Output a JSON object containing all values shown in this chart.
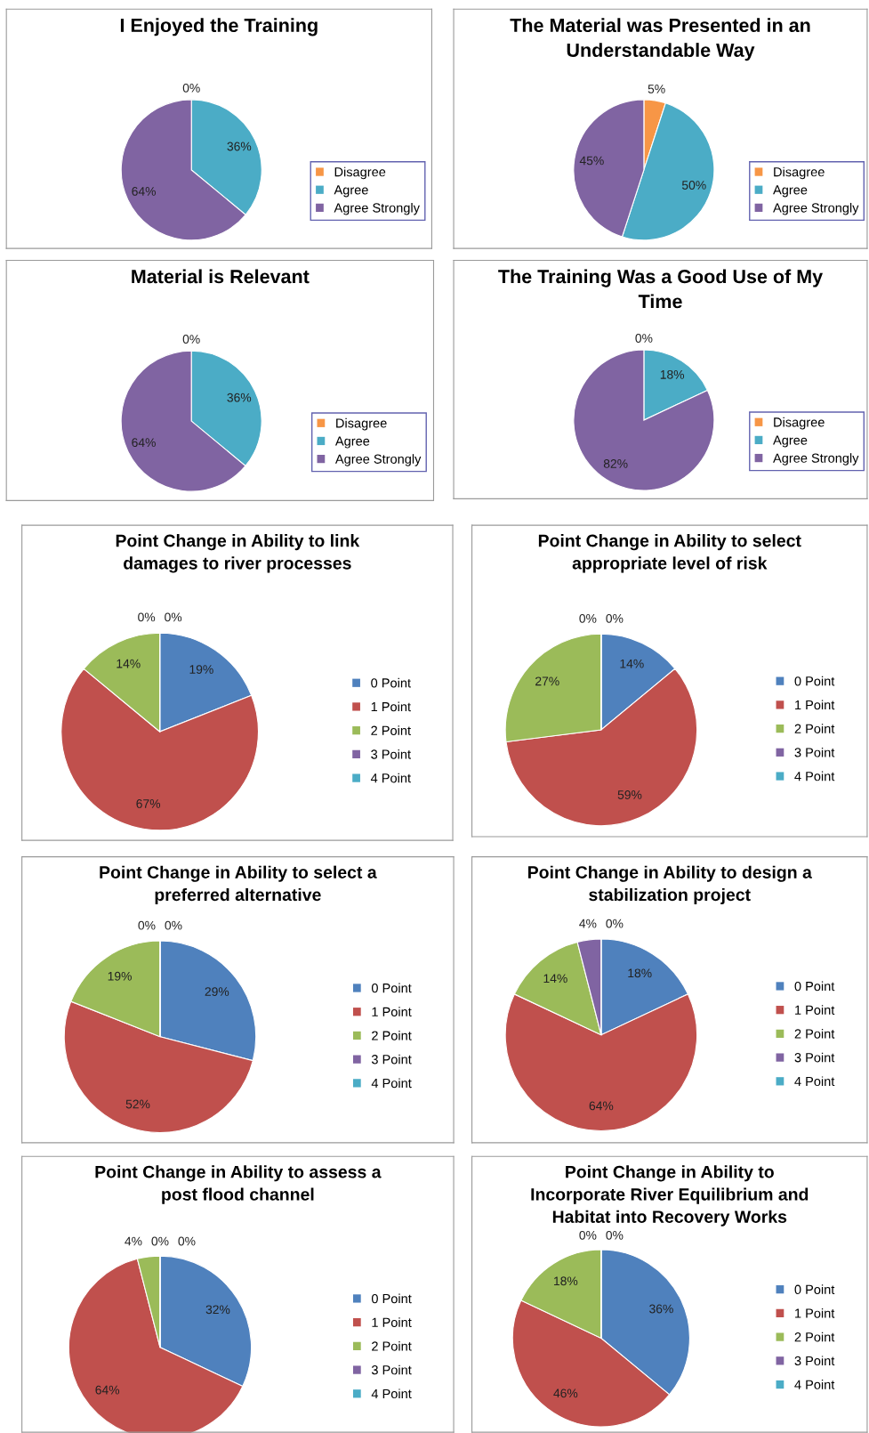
{
  "chart_data": [
    {
      "type": "pie",
      "title": "I Enjoyed the Training",
      "categories": [
        "Disagree",
        "Agree",
        "Agree Strongly"
      ],
      "values": [
        0,
        36,
        64
      ],
      "colors": [
        "#f79646",
        "#4bacc6",
        "#8064a2"
      ],
      "value_labels": [
        "0%",
        "36%",
        "64%"
      ],
      "legend": "right"
    },
    {
      "type": "pie",
      "title": "The Material was Presented in an\nUnderstandable Way",
      "categories": [
        "Disagree",
        "Agree",
        "Agree Strongly"
      ],
      "values": [
        5,
        50,
        45
      ],
      "colors": [
        "#f79646",
        "#4bacc6",
        "#8064a2"
      ],
      "value_labels": [
        "5%",
        "50%",
        "45%"
      ],
      "legend": "right"
    },
    {
      "type": "pie",
      "title": "Material is Relevant",
      "categories": [
        "Disagree",
        "Agree",
        "Agree Strongly"
      ],
      "values": [
        0,
        36,
        64
      ],
      "colors": [
        "#f79646",
        "#4bacc6",
        "#8064a2"
      ],
      "value_labels": [
        "0%",
        "36%",
        "64%"
      ],
      "legend": "right"
    },
    {
      "type": "pie",
      "title": "The Training Was a Good Use of My\nTime",
      "categories": [
        "Disagree",
        "Agree",
        "Agree Strongly"
      ],
      "values": [
        0,
        18,
        82
      ],
      "colors": [
        "#f79646",
        "#4bacc6",
        "#8064a2"
      ],
      "value_labels": [
        "0%",
        "18%",
        "82%"
      ],
      "legend": "right"
    },
    {
      "type": "pie",
      "title": "Point Change in Ability to link\ndamages to river processes",
      "categories": [
        "0 Point",
        "1 Point",
        "2 Point",
        "3 Point",
        "4 Point"
      ],
      "values": [
        19,
        67,
        14,
        0,
        0
      ],
      "colors": [
        "#4f81bd",
        "#c0504d",
        "#9bbb59",
        "#8064a2",
        "#4bacc6"
      ],
      "value_labels": [
        "19%",
        "67%",
        "14%",
        "0%",
        "0%"
      ],
      "legend": "right"
    },
    {
      "type": "pie",
      "title": "Point Change in Ability to select\nappropriate level of risk",
      "categories": [
        "0 Point",
        "1 Point",
        "2 Point",
        "3 Point",
        "4 Point"
      ],
      "values": [
        14,
        59,
        27,
        0,
        0
      ],
      "colors": [
        "#4f81bd",
        "#c0504d",
        "#9bbb59",
        "#8064a2",
        "#4bacc6"
      ],
      "value_labels": [
        "14%",
        "59%",
        "27%",
        "0%",
        "0%"
      ],
      "legend": "right"
    },
    {
      "type": "pie",
      "title": "Point Change in Ability to select a\npreferred alternative",
      "categories": [
        "0 Point",
        "1 Point",
        "2 Point",
        "3 Point",
        "4 Point"
      ],
      "values": [
        29,
        52,
        19,
        0,
        0
      ],
      "colors": [
        "#4f81bd",
        "#c0504d",
        "#9bbb59",
        "#8064a2",
        "#4bacc6"
      ],
      "value_labels": [
        "29%",
        "52%",
        "19%",
        "0%",
        "0%"
      ],
      "legend": "right"
    },
    {
      "type": "pie",
      "title": "Point Change in Ability to design a\nstabilization project",
      "categories": [
        "0 Point",
        "1 Point",
        "2 Point",
        "3 Point",
        "4 Point"
      ],
      "values": [
        18,
        64,
        14,
        4,
        0
      ],
      "colors": [
        "#4f81bd",
        "#c0504d",
        "#9bbb59",
        "#8064a2",
        "#4bacc6"
      ],
      "value_labels": [
        "18%",
        "64%",
        "14%",
        "4%",
        "0%"
      ],
      "legend": "right"
    },
    {
      "type": "pie",
      "title": "Point Change in Ability to assess a\npost flood channel",
      "categories": [
        "0 Point",
        "1 Point",
        "2 Point",
        "3 Point",
        "4 Point"
      ],
      "values": [
        32,
        64,
        4,
        0,
        0
      ],
      "colors": [
        "#4f81bd",
        "#c0504d",
        "#9bbb59",
        "#8064a2",
        "#4bacc6"
      ],
      "value_labels": [
        "32%",
        "64%",
        "4%",
        "0%",
        "0%"
      ],
      "legend": "right"
    },
    {
      "type": "pie",
      "title": "Point Change in Ability to\nIncorporate River Equilibrium and\nHabitat into Recovery Works",
      "categories": [
        "0 Point",
        "1 Point",
        "2 Point",
        "3 Point",
        "4 Point"
      ],
      "values": [
        36,
        46,
        18,
        0,
        0
      ],
      "colors": [
        "#4f81bd",
        "#c0504d",
        "#9bbb59",
        "#8064a2",
        "#4bacc6"
      ],
      "value_labels": [
        "36%",
        "46%",
        "18%",
        "0%",
        "0%"
      ],
      "legend": "right"
    }
  ]
}
